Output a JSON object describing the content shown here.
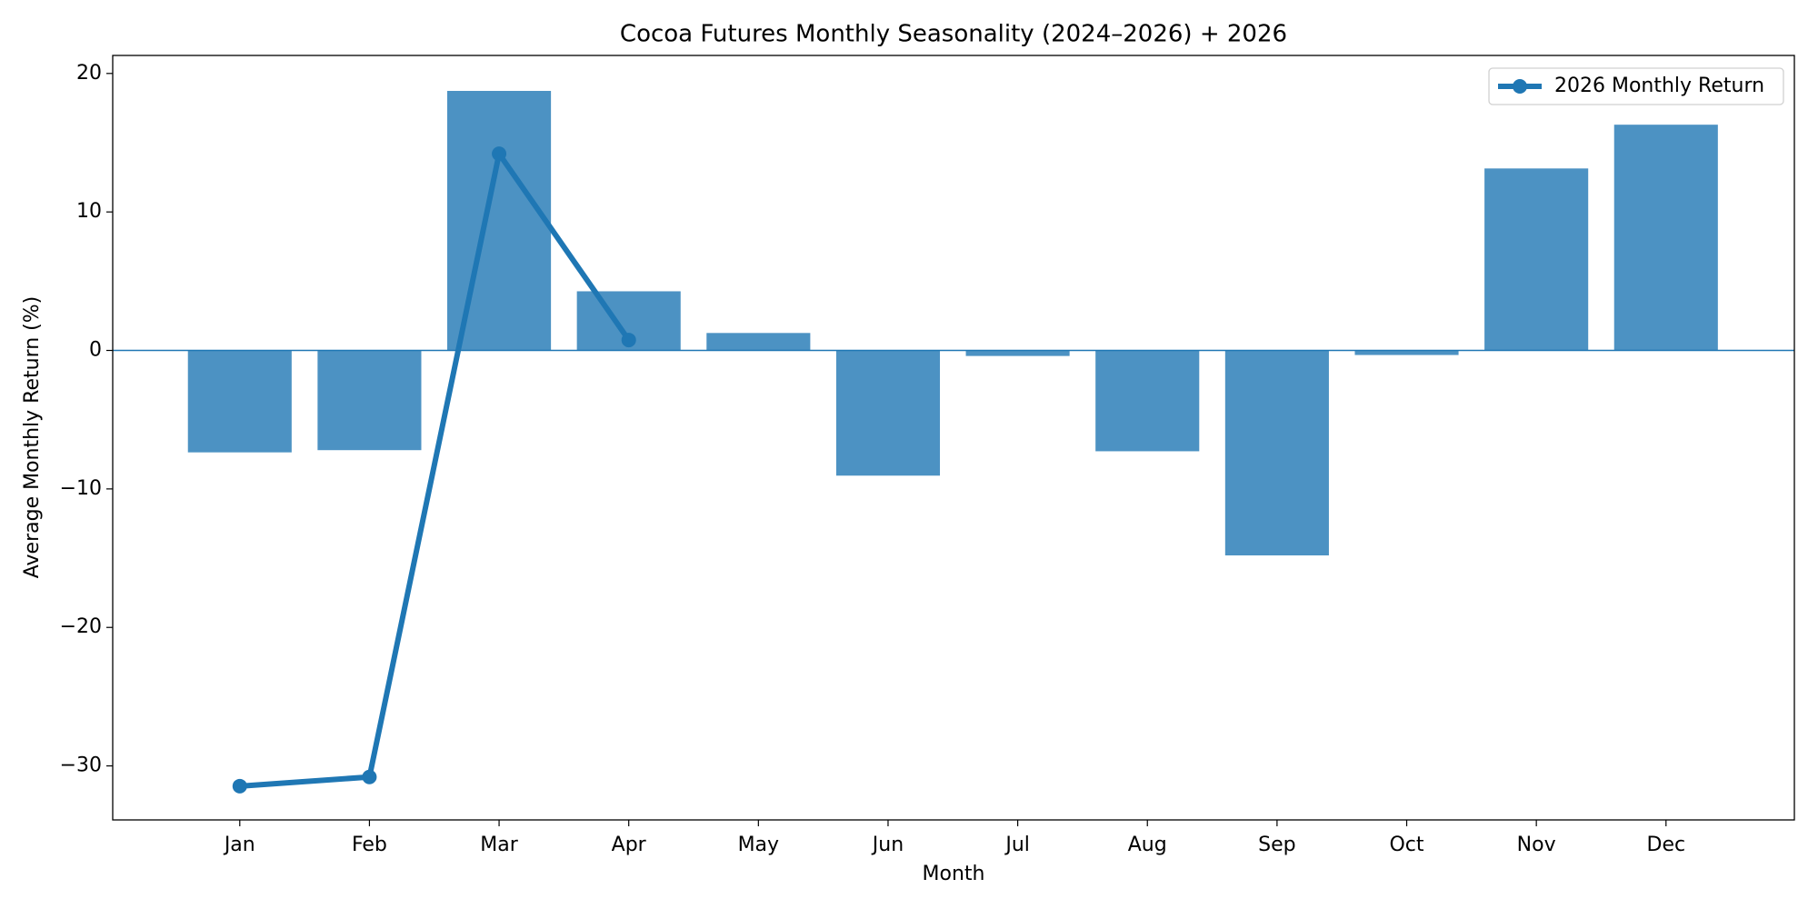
{
  "chart_data": {
    "type": "bar",
    "title": "Cocoa Futures Monthly Seasonality (2024–2026) + 2026",
    "x_label": "Month",
    "y_label": "Average Monthly Return (%)",
    "categories": [
      "Jan",
      "Feb",
      "Mar",
      "Apr",
      "May",
      "Jun",
      "Jul",
      "Aug",
      "Sep",
      "Oct",
      "Nov",
      "Dec"
    ],
    "values": [
      -7.36,
      -7.2,
      18.74,
      4.27,
      1.26,
      -9.04,
      -0.4,
      -7.28,
      -14.8,
      -0.33,
      13.14,
      16.3
    ],
    "color": "#4c92c3",
    "series": [
      {
        "name": "2026 Monthly Return",
        "type": "line",
        "color": "#1f77b4",
        "values": [
          -31.46,
          -30.8,
          14.2,
          0.75,
          null,
          null,
          null,
          null,
          null,
          null,
          null,
          null
        ]
      }
    ],
    "ylim": [
      -33.9,
      21.3
    ],
    "yticks": [
      {
        "value": -30,
        "label": "−30"
      },
      {
        "value": -20,
        "label": "−20"
      },
      {
        "value": -10,
        "label": "−10"
      },
      0,
      10,
      20
    ],
    "grid": false,
    "legend": "upper right"
  }
}
